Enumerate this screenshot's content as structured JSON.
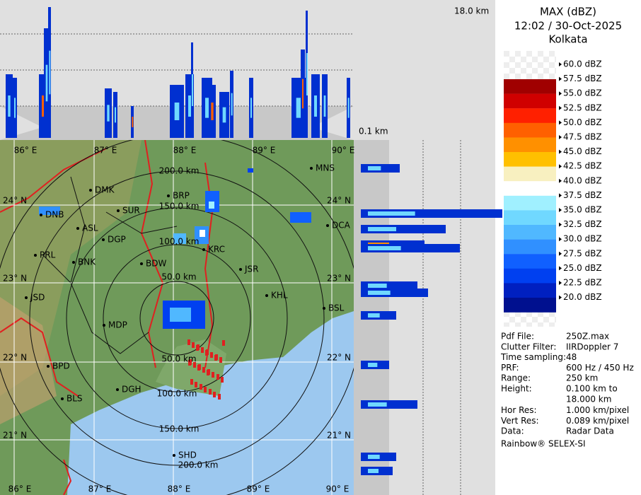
{
  "header": {
    "title": "MAX (dBZ)",
    "time": "12:02 / 30-Oct-2025",
    "station": "Kolkata"
  },
  "altitude": {
    "top": "18.0 km",
    "bottom": "0.1 km"
  },
  "legend": {
    "labels": [
      "60.0 dBZ",
      "57.5 dBZ",
      "55.0 dBZ",
      "52.5 dBZ",
      "50.0 dBZ",
      "47.5 dBZ",
      "45.0 dBZ",
      "42.5 dBZ",
      "40.0 dBZ",
      "37.5 dBZ",
      "35.0 dBZ",
      "32.5 dBZ",
      "30.0 dBZ",
      "27.5 dBZ",
      "25.0 dBZ",
      "22.5 dBZ",
      "20.0 dBZ"
    ],
    "colors": [
      "#a00000",
      "#d00000",
      "#ff2000",
      "#ff6000",
      "#ff9000",
      "#ffc000",
      "#f8f0c0",
      "#ffffff",
      "#a0f0ff",
      "#70d8ff",
      "#50b8ff",
      "#3090ff",
      "#1060ff",
      "#0040f0",
      "#0020c0",
      "#00108f"
    ]
  },
  "info": [
    [
      "Pdf File:",
      "250Z.max"
    ],
    [
      "Clutter Filter:",
      "IIRDoppler 7"
    ],
    [
      "Time sampling:",
      "48"
    ],
    [
      "PRF:",
      "600 Hz / 450 Hz"
    ],
    [
      "Range:",
      "250 km"
    ],
    [
      "Height:",
      "0.100 km to"
    ],
    [
      "",
      "18.000 km"
    ],
    [
      "Hor Res:",
      "1.000 km/pixel"
    ],
    [
      "Vert Res:",
      "0.089 km/pixel"
    ],
    [
      "Data:",
      "Radar Data"
    ]
  ],
  "credit": "Rainbow® SELEX-SI",
  "map": {
    "lon_labels": [
      "86° E",
      "87° E",
      "88° E",
      "89° E",
      "90° E"
    ],
    "lat_labels": [
      "24° N",
      "23° N",
      "22° N",
      "21° N"
    ],
    "range_labels": [
      "200.0 km",
      "150.0 km",
      "100.0 km",
      "50.0 km",
      "50.0 km",
      "100.0 km",
      "150.0 km",
      "200.0 km"
    ],
    "cities": [
      "MNS",
      "DMK",
      "BRP",
      "SUR",
      "DNB",
      "DCA",
      "ASL",
      "DGP",
      "KRC",
      "PRL",
      "BNK",
      "BDW",
      "JSR",
      "KHL",
      "JSD",
      "BSL",
      "MDP",
      "BPD",
      "DGH",
      "BLS",
      "SHD"
    ]
  }
}
